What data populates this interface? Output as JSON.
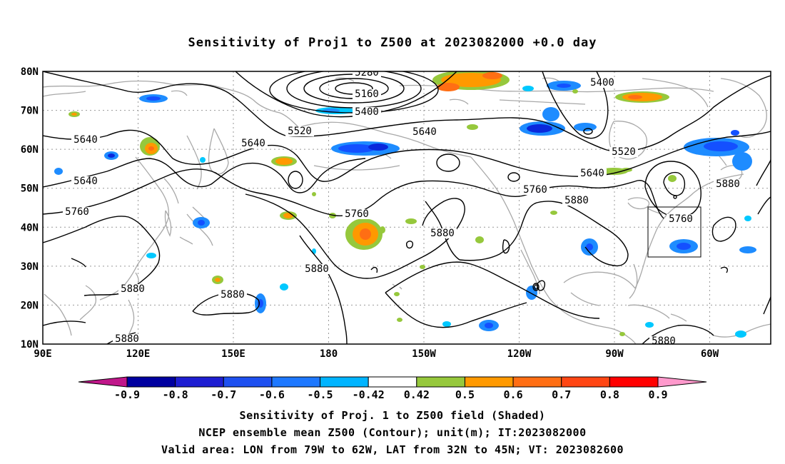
{
  "title": "Sensitivity of Proj1 to Z500 at 2023082000 +0.0 day",
  "map": {
    "lat_labels": [
      "80N",
      "70N",
      "60N",
      "50N",
      "40N",
      "30N",
      "20N",
      "10N"
    ],
    "lon_labels": [
      "90E",
      "120E",
      "150E",
      "180",
      "150W",
      "120W",
      "90W",
      "60W"
    ],
    "contour_labels": [
      {
        "text": "5280"
      },
      {
        "text": "5160"
      },
      {
        "text": "5400"
      },
      {
        "text": "5400"
      },
      {
        "text": "5520"
      },
      {
        "text": "5640"
      },
      {
        "text": "5640"
      },
      {
        "text": "5640"
      },
      {
        "text": "5640"
      },
      {
        "text": "5520"
      },
      {
        "text": "5640"
      },
      {
        "text": "5760"
      },
      {
        "text": "5760"
      },
      {
        "text": "5760"
      },
      {
        "text": "5880"
      },
      {
        "text": "5880"
      },
      {
        "text": "5760"
      },
      {
        "text": "5880"
      },
      {
        "text": "5880"
      },
      {
        "text": "5880"
      },
      {
        "text": "5880"
      },
      {
        "text": "5880"
      },
      {
        "text": "5880"
      }
    ],
    "box_label": "Valid area box",
    "colors": {
      "neg_09": "#c0178a",
      "neg_08": "#0000b4",
      "neg_07": "#0a28dc",
      "neg_06": "#1450ff",
      "neg_05": "#1e8cff",
      "neg_042": "#00c8ff",
      "pos_042": "#96c83c",
      "pos_05": "#ff9900",
      "pos_06": "#ff6e14",
      "pos_07": "#ff3c14",
      "pos_08": "#ff0000",
      "pos_09": "#ff99cc"
    }
  },
  "colorbar": {
    "labels": [
      "-0.9",
      "-0.8",
      "-0.7",
      "-0.6",
      "-0.5",
      "-0.42",
      "0.42",
      "0.5",
      "0.6",
      "0.7",
      "0.8",
      "0.9"
    ],
    "colors": [
      "#0000a0",
      "#1e1ed2",
      "#1e50f0",
      "#1e78ff",
      "#00b4ff",
      "#ffffff",
      "#96c83c",
      "#ff9900",
      "#ff6e14",
      "#ff4614",
      "#ff0000"
    ],
    "left_tip_color": "#c0178a",
    "right_tip_color": "#ff99cc"
  },
  "caption": {
    "line1": "Sensitivity of Proj. 1 to Z500 field (Shaded)",
    "line2": "NCEP ensemble mean Z500 (Contour); unit(m); IT:2023082000",
    "line3": "Valid area: LON from 79W to 62W, LAT from 32N to 45N; VT: 2023082600"
  }
}
